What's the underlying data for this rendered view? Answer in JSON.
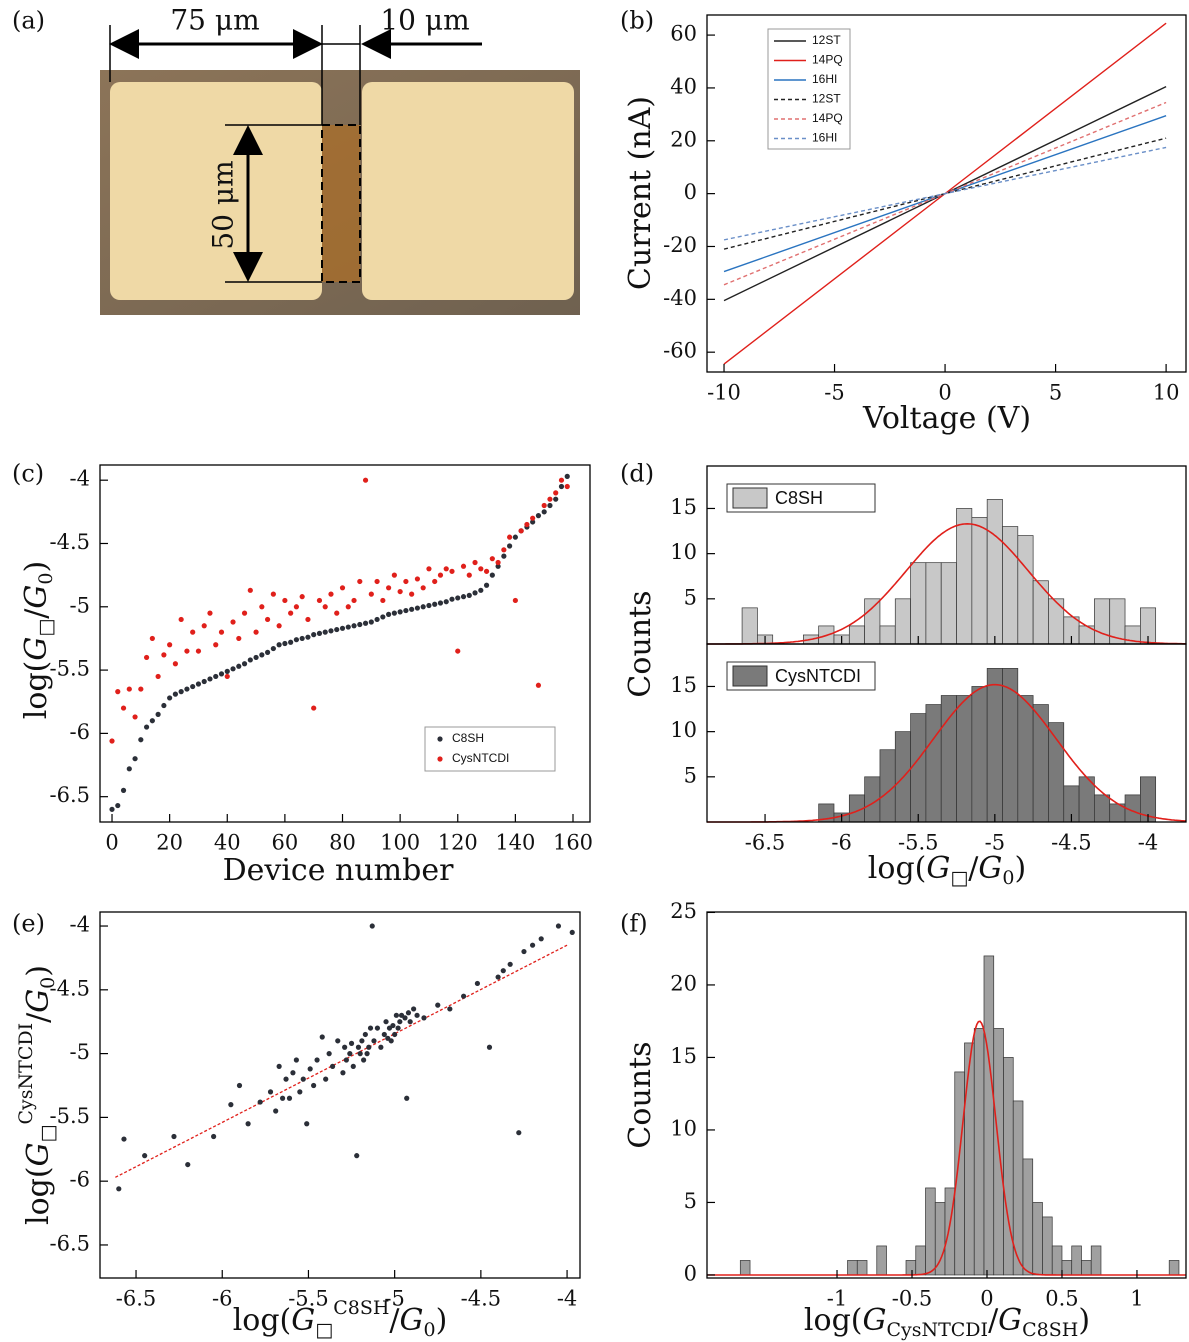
{
  "photo": {
    "panel": "(a)",
    "labels": [
      "75 μm",
      "10 μm",
      "50 μm"
    ]
  },
  "chart_data": [
    {
      "type": "line",
      "panel": "(b)",
      "xlabel": "Voltage (V)",
      "ylabel": "Current (nA)",
      "x": [
        -10,
        0,
        10
      ],
      "series": [
        {
          "name": "12ST",
          "color": "#222222",
          "style": "solid",
          "values": [
            -40.5,
            0,
            40.5
          ]
        },
        {
          "name": "14PQ",
          "color": "#e0201b",
          "style": "solid",
          "values": [
            -64.5,
            0,
            64.5
          ]
        },
        {
          "name": "16HI",
          "color": "#2a74c0",
          "style": "solid",
          "values": [
            -29.5,
            0,
            29.5
          ]
        },
        {
          "name": "12ST",
          "color": "#222222",
          "style": "dashed",
          "values": [
            -21,
            0,
            21
          ]
        },
        {
          "name": "14PQ",
          "color": "#e07070",
          "style": "dashed",
          "values": [
            -34.5,
            0,
            34.5
          ]
        },
        {
          "name": "16HI",
          "color": "#6a8fc8",
          "style": "dashed",
          "values": [
            -17.5,
            0,
            17.5
          ]
        }
      ],
      "xlim": [
        -10.77,
        10.9
      ],
      "ylim": [
        -67.5,
        67.6
      ],
      "xticks": [
        -10,
        -5,
        0,
        5,
        10
      ],
      "yticks": [
        -60,
        -40,
        -20,
        0,
        20,
        40,
        60
      ]
    },
    {
      "type": "scatter",
      "panel": "(c)",
      "xlabel": "Device number",
      "ylabel": [
        "log(",
        "G",
        "□",
        "/",
        "G",
        "0",
        ")"
      ],
      "x": [
        0,
        2,
        4,
        6,
        8,
        10,
        12,
        14,
        16,
        18,
        20,
        22,
        24,
        26,
        28,
        30,
        32,
        34,
        36,
        38,
        40,
        42,
        44,
        46,
        48,
        50,
        52,
        54,
        56,
        58,
        60,
        62,
        64,
        66,
        68,
        70,
        72,
        74,
        76,
        78,
        80,
        82,
        84,
        86,
        88,
        90,
        92,
        94,
        96,
        98,
        100,
        102,
        104,
        106,
        108,
        110,
        112,
        114,
        116,
        118,
        120,
        122,
        124,
        126,
        128,
        130,
        132,
        134,
        136,
        138,
        140,
        142,
        144,
        146,
        148,
        150,
        152,
        154,
        156,
        158
      ],
      "series": [
        {
          "name": "C8SH",
          "color": "#2b2f38",
          "values": [
            -6.6,
            -6.57,
            -6.45,
            -6.28,
            -6.2,
            -6.05,
            -5.95,
            -5.9,
            -5.85,
            -5.78,
            -5.72,
            -5.69,
            -5.67,
            -5.65,
            -5.63,
            -5.61,
            -5.59,
            -5.57,
            -5.55,
            -5.53,
            -5.51,
            -5.49,
            -5.47,
            -5.45,
            -5.42,
            -5.4,
            -5.38,
            -5.36,
            -5.33,
            -5.3,
            -5.29,
            -5.28,
            -5.26,
            -5.25,
            -5.24,
            -5.22,
            -5.21,
            -5.2,
            -5.19,
            -5.18,
            -5.17,
            -5.16,
            -5.15,
            -5.14,
            -5.13,
            -5.12,
            -5.1,
            -5.08,
            -5.06,
            -5.05,
            -5.04,
            -5.03,
            -5.02,
            -5.01,
            -5.0,
            -4.99,
            -4.98,
            -4.97,
            -4.96,
            -4.94,
            -4.93,
            -4.92,
            -4.91,
            -4.89,
            -4.87,
            -4.83,
            -4.75,
            -4.68,
            -4.6,
            -4.52,
            -4.45,
            -4.4,
            -4.37,
            -4.33,
            -4.28,
            -4.25,
            -4.2,
            -4.15,
            -4.05,
            -3.97
          ]
        },
        {
          "name": "CysNTCDI",
          "color": "#e0201b",
          "values": [
            -6.06,
            -5.67,
            -5.8,
            -5.65,
            -5.87,
            -5.65,
            -5.4,
            -5.25,
            -5.55,
            -5.38,
            -5.3,
            -5.45,
            -5.1,
            -5.35,
            -5.2,
            -5.35,
            -5.15,
            -5.05,
            -5.3,
            -5.2,
            -5.55,
            -5.12,
            -5.25,
            -5.05,
            -4.87,
            -5.2,
            -5.0,
            -5.1,
            -4.9,
            -5.15,
            -4.95,
            -5.05,
            -5.0,
            -4.92,
            -5.1,
            -5.8,
            -4.95,
            -5.0,
            -4.9,
            -5.05,
            -4.85,
            -5.0,
            -4.95,
            -4.8,
            -4.0,
            -4.9,
            -4.8,
            -4.95,
            -4.85,
            -4.75,
            -4.88,
            -4.8,
            -4.9,
            -4.78,
            -4.85,
            -4.7,
            -4.8,
            -4.75,
            -4.7,
            -4.72,
            -5.35,
            -4.68,
            -4.75,
            -4.65,
            -4.7,
            -4.72,
            -4.62,
            -4.65,
            -4.55,
            -4.45,
            -4.95,
            -4.4,
            -4.35,
            -4.3,
            -5.62,
            -4.2,
            -4.15,
            -4.1,
            -4.0,
            -4.05
          ]
        }
      ],
      "xlim": [
        -4.17,
        165.9
      ],
      "ylim": [
        -6.7,
        -3.88
      ],
      "xticks": [
        0,
        20,
        40,
        60,
        80,
        100,
        120,
        140,
        160
      ],
      "yticks": [
        -4,
        -4.5,
        -5,
        -5.5,
        -6,
        -6.5
      ],
      "legend": "lower right"
    },
    {
      "type": "histogram",
      "panel": "(d)",
      "xlabel": [
        "log(",
        "G",
        "□",
        "/",
        "G",
        "0",
        ")"
      ],
      "ylabel": "Counts",
      "xlim": [
        -6.879,
        -3.752
      ],
      "xticks": [
        -6.5,
        -6,
        -5.5,
        -5,
        -4.5,
        -4
      ],
      "legend": "upper left",
      "series": [
        {
          "name": "C8SH",
          "color": "#c8c8c8",
          "fit_color": "#e0201b",
          "bins": [
            -6.65,
            -6.55,
            -6.45,
            -6.35,
            -6.25,
            -6.15,
            -6.05,
            -5.95,
            -5.85,
            -5.75,
            -5.65,
            -5.55,
            -5.45,
            -5.35,
            -5.25,
            -5.15,
            -5.05,
            -4.95,
            -4.85,
            -4.75,
            -4.65,
            -4.55,
            -4.45,
            -4.35,
            -4.25,
            -4.15,
            -4.05,
            -3.95
          ],
          "counts": [
            4,
            1,
            0,
            0,
            1,
            2,
            1,
            2,
            5,
            2,
            5,
            9,
            9,
            9,
            15,
            14,
            16,
            13,
            12,
            7,
            5,
            3,
            2,
            5,
            5,
            2,
            4
          ],
          "fit": {
            "mu": -5.18,
            "sigma": 0.4,
            "amplitude": 13.3
          },
          "ylim": [
            0,
            19.7
          ],
          "yticks": [
            5,
            10,
            15
          ]
        },
        {
          "name": "CysNTCDI",
          "color": "#7a7a7a",
          "fit_color": "#e0201b",
          "bins": [
            -6.15,
            -6.05,
            -5.95,
            -5.85,
            -5.75,
            -5.65,
            -5.55,
            -5.45,
            -5.35,
            -5.25,
            -5.15,
            -5.05,
            -4.95,
            -4.85,
            -4.75,
            -4.65,
            -4.55,
            -4.45,
            -4.35,
            -4.25,
            -4.15,
            -4.05,
            -3.95
          ],
          "counts": [
            2,
            1,
            3,
            5,
            8,
            10,
            12,
            13,
            14,
            14,
            15,
            17,
            17,
            14,
            13,
            11,
            4,
            5,
            3,
            2,
            3,
            5
          ],
          "fit": {
            "mu": -5.0,
            "sigma": 0.4,
            "amplitude": 15.2
          },
          "ylim": [
            0,
            19.7
          ],
          "yticks": [
            5,
            10,
            15
          ]
        }
      ]
    },
    {
      "type": "scatter-fit",
      "panel": "(e)",
      "xlabel": [
        "log(",
        "G",
        "□",
        "C8SH",
        "/",
        "G",
        "0",
        ")"
      ],
      "ylabel": [
        "log(",
        "G",
        "□",
        "CysNTCDI",
        "/",
        "G",
        "0",
        ")"
      ],
      "color": "#2b2f38",
      "fit_color": "#e0201b",
      "x": [
        -6.6,
        -6.57,
        -6.45,
        -6.28,
        -6.2,
        -6.05,
        -5.95,
        -5.9,
        -5.85,
        -5.78,
        -5.72,
        -5.69,
        -5.67,
        -5.65,
        -5.63,
        -5.61,
        -5.59,
        -5.57,
        -5.55,
        -5.53,
        -5.51,
        -5.49,
        -5.47,
        -5.45,
        -5.42,
        -5.4,
        -5.38,
        -5.36,
        -5.33,
        -5.3,
        -5.29,
        -5.28,
        -5.26,
        -5.25,
        -5.24,
        -5.22,
        -5.21,
        -5.2,
        -5.19,
        -5.18,
        -5.17,
        -5.16,
        -5.15,
        -5.14,
        -5.13,
        -5.12,
        -5.1,
        -5.08,
        -5.06,
        -5.05,
        -5.04,
        -5.03,
        -5.02,
        -5.01,
        -5.0,
        -4.99,
        -4.98,
        -4.97,
        -4.96,
        -4.94,
        -4.93,
        -4.92,
        -4.91,
        -4.89,
        -4.87,
        -4.83,
        -4.75,
        -4.68,
        -4.6,
        -4.52,
        -4.45,
        -4.4,
        -4.37,
        -4.33,
        -4.28,
        -4.25,
        -4.2,
        -4.15,
        -4.05,
        -3.97
      ],
      "y": [
        -6.06,
        -5.67,
        -5.8,
        -5.65,
        -5.87,
        -5.65,
        -5.4,
        -5.25,
        -5.55,
        -5.38,
        -5.3,
        -5.45,
        -5.1,
        -5.35,
        -5.2,
        -5.35,
        -5.15,
        -5.05,
        -5.3,
        -5.2,
        -5.55,
        -5.12,
        -5.25,
        -5.05,
        -4.87,
        -5.2,
        -5.0,
        -5.1,
        -4.9,
        -5.15,
        -4.95,
        -5.05,
        -5.0,
        -4.92,
        -5.1,
        -5.8,
        -4.95,
        -5.0,
        -4.9,
        -5.05,
        -4.85,
        -5.0,
        -4.95,
        -4.8,
        -4.0,
        -4.9,
        -4.8,
        -4.95,
        -4.85,
        -4.75,
        -4.88,
        -4.8,
        -4.9,
        -4.78,
        -4.85,
        -4.7,
        -4.8,
        -4.75,
        -4.7,
        -4.72,
        -5.35,
        -4.68,
        -4.75,
        -4.65,
        -4.7,
        -4.72,
        -4.62,
        -4.65,
        -4.55,
        -4.45,
        -4.95,
        -4.4,
        -4.35,
        -4.3,
        -5.62,
        -4.2,
        -4.15,
        -4.1,
        -4.0,
        -4.05
      ],
      "fit": {
        "x": [
          -6.62,
          -4.0
        ],
        "y": [
          -5.97,
          -4.15
        ]
      },
      "xlim": [
        -6.709,
        -3.925
      ],
      "ylim": [
        -6.759,
        -3.89
      ],
      "xticks": [
        -6.5,
        -6,
        -5.5,
        -5,
        -4.5,
        -4
      ],
      "yticks": [
        -4,
        -4.5,
        -5,
        -5.5,
        -6,
        -6.5
      ]
    },
    {
      "type": "histogram",
      "panel": "(f)",
      "xlabel": [
        "log(",
        "G",
        "CysNTCDI",
        "/",
        "G",
        "C8SH",
        ")"
      ],
      "ylabel": "Counts",
      "xlim": [
        -1.867,
        1.327
      ],
      "xticks": [
        -1,
        -0.5,
        0,
        0.5,
        1
      ],
      "series": [
        {
          "color": "#a0a0a0",
          "fit_color": "#e0201b",
          "bins": [
            -1.645,
            -1.58,
            -1.515,
            -1.45,
            -1.385,
            -1.32,
            -1.255,
            -1.19,
            -1.125,
            -1.06,
            -0.995,
            -0.93,
            -0.865,
            -0.8,
            -0.735,
            -0.67,
            -0.605,
            -0.54,
            -0.475,
            -0.41,
            -0.345,
            -0.28,
            -0.215,
            -0.15,
            -0.085,
            -0.02,
            0.045,
            0.11,
            0.175,
            0.24,
            0.305,
            0.37,
            0.435,
            0.5,
            0.565,
            0.63,
            0.695,
            0.76,
            0.825,
            0.89,
            0.955,
            1.02,
            1.085,
            1.15,
            1.215,
            1.28
          ],
          "counts": [
            1,
            0,
            0,
            0,
            0,
            0,
            0,
            0,
            0,
            0,
            0,
            1,
            1,
            0,
            2,
            0,
            0,
            1,
            2,
            6,
            5,
            6,
            14,
            16,
            17,
            22,
            17,
            15,
            12,
            8,
            5,
            4,
            2,
            1,
            2,
            1,
            2,
            0,
            0,
            0,
            0,
            0,
            0,
            0,
            1
          ],
          "fit": {
            "mu": -0.05,
            "sigma": 0.11,
            "amplitude": 17.5
          },
          "ylim": [
            -0.21,
            25.03
          ],
          "yticks": [
            0,
            5,
            10,
            15,
            20,
            25
          ]
        }
      ]
    }
  ]
}
